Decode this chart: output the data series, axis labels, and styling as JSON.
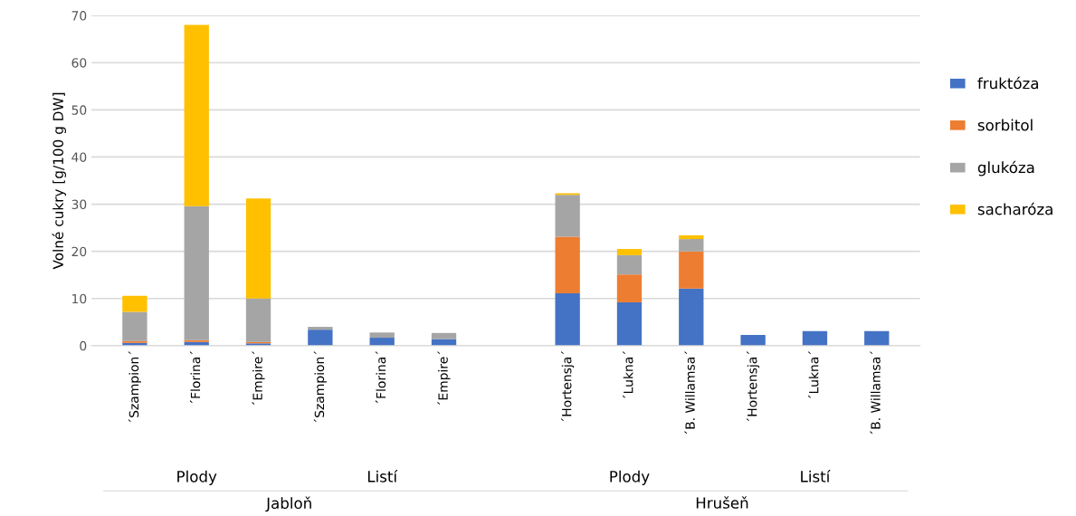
{
  "chart_data": {
    "type": "bar",
    "stacked": true,
    "ylabel": "Volné cukry [g/100 g DW]",
    "categories": [
      "´Szampion´",
      "´Florina´",
      "´Empire´",
      "´Szampion´",
      "´Florina´",
      "´Empire´",
      null,
      "´Hortensja´",
      "´Lukna´",
      "´B. Willamsa´",
      "´Hortensja´",
      "´Lukna´",
      "´B. Willamsa´"
    ],
    "series": [
      {
        "name": "fruktóza",
        "color": "#4472c4",
        "values": [
          0.6,
          0.8,
          0.5,
          3.4,
          1.7,
          1.4,
          null,
          11.1,
          9.2,
          12.1,
          2.3,
          3.1,
          3.1
        ]
      },
      {
        "name": "sorbitol",
        "color": "#ed7d31",
        "values": [
          0.4,
          0.4,
          0.3,
          0,
          0,
          0,
          null,
          12.0,
          5.9,
          7.9,
          0,
          0,
          0
        ]
      },
      {
        "name": "glukóza",
        "color": "#a5a5a5",
        "values": [
          6.2,
          28.4,
          9.2,
          0.6,
          1.1,
          1.3,
          null,
          8.9,
          4.1,
          2.6,
          0,
          0,
          0
        ]
      },
      {
        "name": "sacharóza",
        "color": "#ffc000",
        "values": [
          3.4,
          38.4,
          21.2,
          0,
          0,
          0,
          null,
          0.3,
          1.3,
          0.8,
          0,
          0,
          0
        ]
      }
    ],
    "ylim": [
      0,
      70
    ],
    "yticks": [
      0,
      10,
      20,
      30,
      40,
      50,
      60,
      70
    ],
    "grid": "y",
    "legend": "right",
    "annotations": [
      "Plody",
      "Listí",
      "Jabloň",
      "Plody",
      "Listí",
      "Hrušeň"
    ]
  }
}
